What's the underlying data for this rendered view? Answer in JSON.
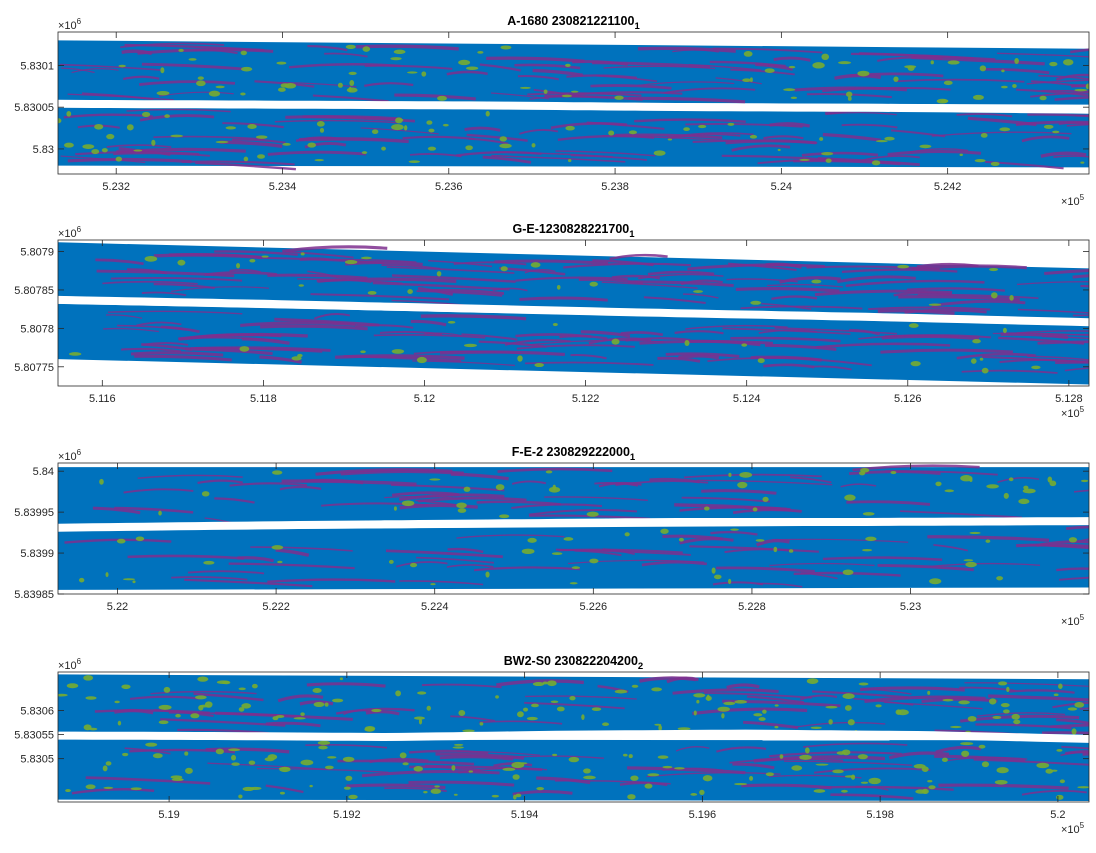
{
  "colors": {
    "base": "#0072bd",
    "magenta": "#7e2f8e",
    "green": "#77ac30",
    "background": "#ffffff"
  },
  "chart_data": [
    {
      "type": "other",
      "title_main": "A-1680  230821221100",
      "title_sub": "1",
      "x_multiplier": "×10^5",
      "y_multiplier": "×10^6",
      "x_ticks": [
        "5.232",
        "5.234",
        "5.236",
        "5.238",
        "5.24",
        "5.242"
      ],
      "x_tick_values": [
        5.232,
        5.234,
        5.236,
        5.238,
        5.24,
        5.242
      ],
      "y_ticks": [
        "5.8301",
        "5.83005",
        "5.83"
      ],
      "y_tick_values": [
        5.8301,
        5.83005,
        5.83
      ],
      "xlim": [
        5.2313,
        5.2437
      ],
      "ylim": [
        5.82997,
        5.83014
      ],
      "strip_upper": [
        [
          5.2313,
          5.83013,
          5.830058
        ],
        [
          5.2437,
          5.83012,
          5.830053
        ]
      ],
      "strip_lower": [
        [
          5.2313,
          5.83005,
          5.82998
        ],
        [
          5.2437,
          5.830045,
          5.829978
        ]
      ],
      "gap_center": [
        [
          5.2313,
          5.830054
        ],
        [
          5.234,
          5.830053
        ],
        [
          5.2365,
          5.830052
        ],
        [
          5.239,
          5.83005
        ],
        [
          5.2415,
          5.830049
        ],
        [
          5.2437,
          5.830047
        ]
      ],
      "green_density": 0.35,
      "magenta_density": 0.55
    },
    {
      "type": "other",
      "title_main": "G-E-1230828221700",
      "title_sub": "1",
      "x_multiplier": "×10^5",
      "y_multiplier": "×10^6",
      "x_ticks": [
        "5.116",
        "5.118",
        "5.12",
        "5.122",
        "5.124",
        "5.126",
        "5.128"
      ],
      "x_tick_values": [
        5.116,
        5.118,
        5.12,
        5.122,
        5.124,
        5.126,
        5.128
      ],
      "y_ticks": [
        "5.8079",
        "5.80785",
        "5.8078",
        "5.80775"
      ],
      "y_tick_values": [
        5.8079,
        5.80785,
        5.8078,
        5.80775
      ],
      "xlim": [
        5.11545,
        5.12825
      ],
      "ylim": [
        5.807725,
        5.807915
      ],
      "strip_upper": [
        [
          5.11545,
          5.807912,
          5.807842
        ],
        [
          5.12825,
          5.807878,
          5.807812
        ]
      ],
      "strip_lower": [
        [
          5.11545,
          5.807832,
          5.80776
        ],
        [
          5.12825,
          5.807804,
          5.807727
        ]
      ],
      "gap_center": [
        [
          5.11545,
          5.807837
        ],
        [
          5.118,
          5.807832
        ],
        [
          5.1205,
          5.807826
        ],
        [
          5.123,
          5.80782
        ],
        [
          5.1255,
          5.807815
        ],
        [
          5.12825,
          5.807808
        ]
      ],
      "green_density": 0.12,
      "magenta_density": 0.6
    },
    {
      "type": "other",
      "title_main": "F-E-2  230829222000",
      "title_sub": "1",
      "x_multiplier": "×10^5",
      "y_multiplier": "×10^6",
      "x_ticks": [
        "5.22",
        "5.222",
        "5.224",
        "5.226",
        "5.228",
        "5.23"
      ],
      "x_tick_values": [
        5.22,
        5.222,
        5.224,
        5.226,
        5.228,
        5.23
      ],
      "y_ticks": [
        "5.84",
        "5.83995",
        "5.8399",
        "5.83985"
      ],
      "y_tick_values": [
        5.84,
        5.83995,
        5.8399,
        5.83985
      ],
      "xlim": [
        5.21925,
        5.23225
      ],
      "ylim": [
        5.83985,
        5.84001
      ],
      "strip_upper": [
        [
          5.21925,
          5.840005,
          5.839935
        ],
        [
          5.23225,
          5.840005,
          5.839943
        ]
      ],
      "strip_lower": [
        [
          5.21925,
          5.839928,
          5.839855
        ],
        [
          5.23225,
          5.839935,
          5.839858
        ]
      ],
      "gap_center": [
        [
          5.21925,
          5.839931
        ],
        [
          5.222,
          5.839934
        ],
        [
          5.2245,
          5.839936
        ],
        [
          5.227,
          5.839938
        ],
        [
          5.2295,
          5.839938
        ],
        [
          5.23225,
          5.839939
        ]
      ],
      "green_density": 0.2,
      "magenta_density": 0.35
    },
    {
      "type": "other",
      "title_main": "BW2-S0  230822204200",
      "title_sub": "2",
      "x_multiplier": "×10^5",
      "y_multiplier": "×10^6",
      "x_ticks": [
        "5.19",
        "5.192",
        "5.194",
        "5.196",
        "5.198",
        "5.2"
      ],
      "x_tick_values": [
        5.19,
        5.192,
        5.194,
        5.196,
        5.198,
        5.2
      ],
      "y_ticks": [
        "5.8306",
        "5.83055",
        "5.8305"
      ],
      "y_tick_values": [
        5.8306,
        5.83055,
        5.8305
      ],
      "xlim": [
        5.18875,
        5.20035
      ],
      "ylim": [
        5.83041,
        5.83068
      ],
      "strip_upper": [
        [
          5.18875,
          5.830675,
          5.830553
        ],
        [
          5.20035,
          5.830665,
          5.830545
        ]
      ],
      "strip_lower": [
        [
          5.18875,
          5.83054,
          5.830415
        ],
        [
          5.20035,
          5.830538,
          5.830412
        ]
      ],
      "gap_center": [
        [
          5.18875,
          5.830548
        ],
        [
          5.1905,
          5.830547
        ],
        [
          5.1925,
          5.830545
        ],
        [
          5.1945,
          5.83055
        ],
        [
          5.1965,
          5.830552
        ],
        [
          5.1985,
          5.830549
        ],
        [
          5.20035,
          5.830541
        ]
      ],
      "green_density": 0.55,
      "magenta_density": 0.4
    }
  ]
}
